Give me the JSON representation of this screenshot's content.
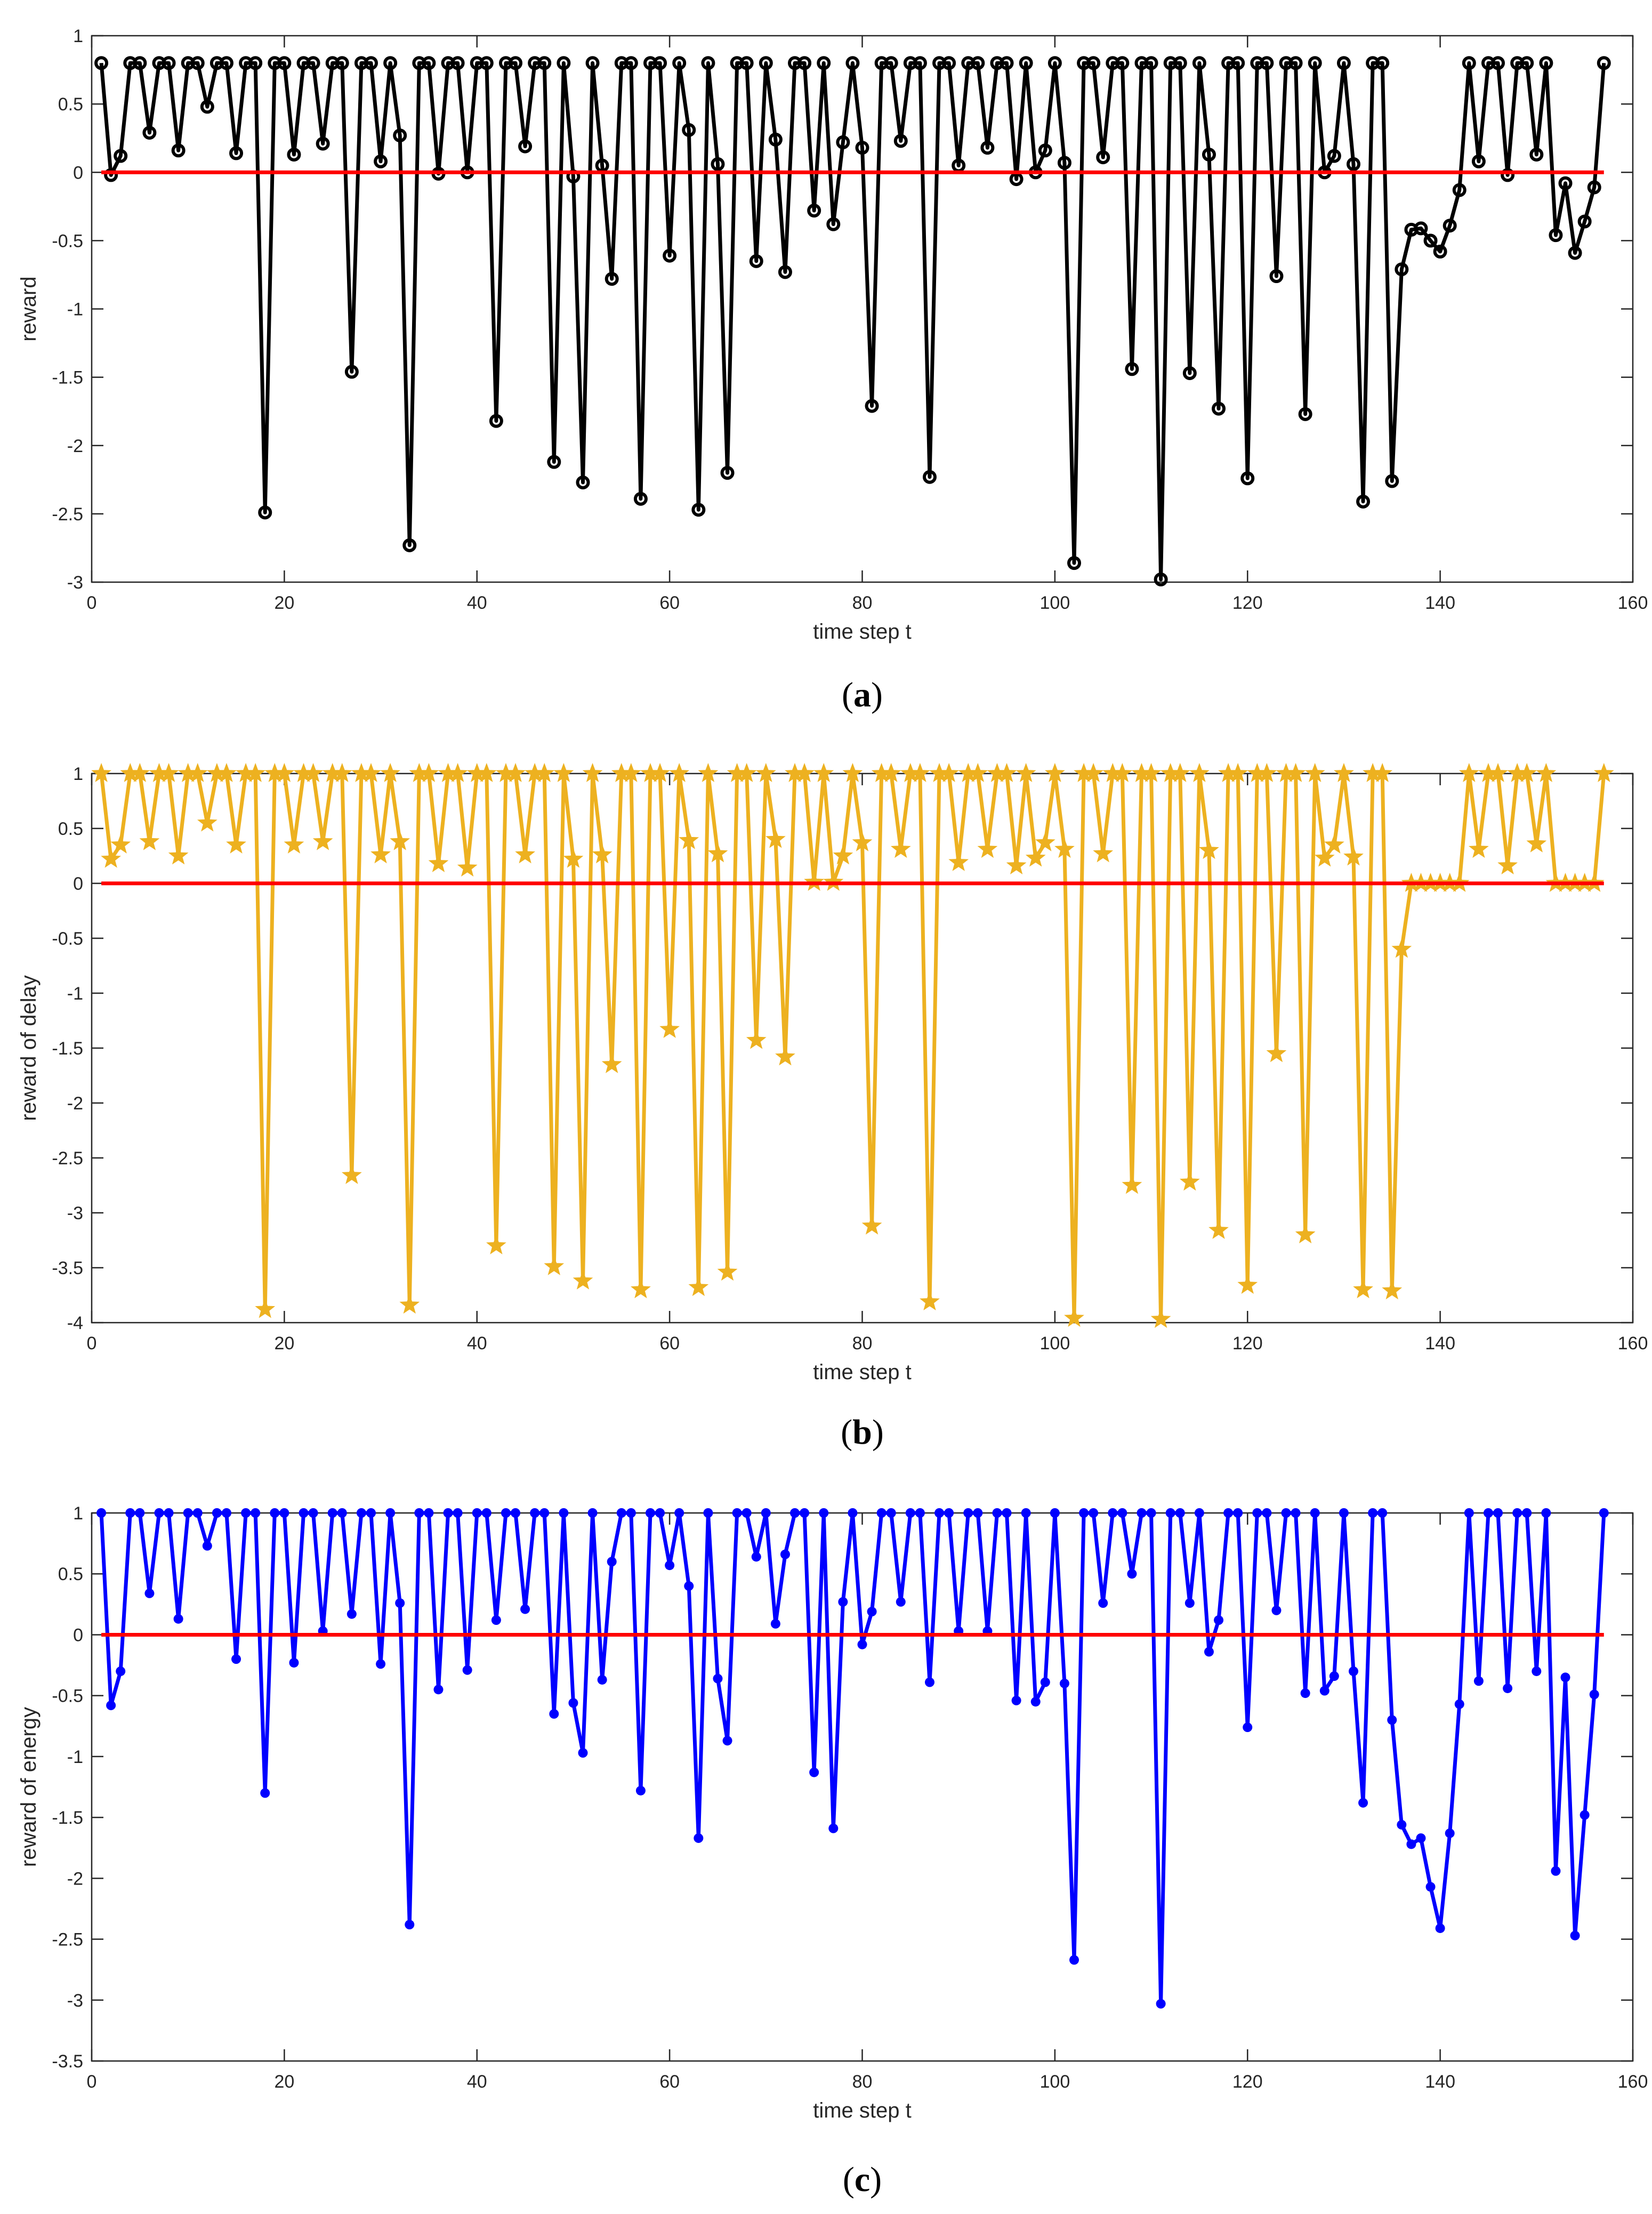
{
  "chart_data": [
    {
      "type": "line",
      "caption": "a",
      "xlabel": "time step t",
      "ylabel": "reward",
      "xlim": [
        0,
        160
      ],
      "ylim": [
        -3,
        1
      ],
      "xticks": [
        0,
        20,
        40,
        60,
        80,
        100,
        120,
        140,
        160
      ],
      "yticks": [
        -3,
        -2.5,
        -2,
        -1.5,
        -1,
        -0.5,
        0,
        0.5,
        1
      ],
      "xtick_labels": [
        "0",
        "20",
        "40",
        "60",
        "80",
        "100",
        "120",
        "140",
        "160"
      ],
      "ytick_labels": [
        "-3",
        "-2.5",
        "-2",
        "-1.5",
        "-1",
        "-0.5",
        "0",
        "0.5",
        "1"
      ],
      "reference_line": {
        "y": 0,
        "color": "#ff0000"
      },
      "series": [
        {
          "name": "reward",
          "color": "#000000",
          "marker": "circle",
          "x": [
            1,
            2,
            3,
            4,
            5,
            6,
            7,
            8,
            9,
            10,
            11,
            12,
            13,
            14,
            15,
            16,
            17,
            18,
            19,
            20,
            21,
            22,
            23,
            24,
            25,
            26,
            27,
            28,
            29,
            30,
            31,
            32,
            33,
            34,
            35,
            36,
            37,
            38,
            39,
            40,
            41,
            42,
            43,
            44,
            45,
            46,
            47,
            48,
            49,
            50,
            51,
            52,
            53,
            54,
            55,
            56,
            57,
            58,
            59,
            60,
            61,
            62,
            63,
            64,
            65,
            66,
            67,
            68,
            69,
            70,
            71,
            72,
            73,
            74,
            75,
            76,
            77,
            78,
            79,
            80,
            81,
            82,
            83,
            84,
            85,
            86,
            87,
            88,
            89,
            90,
            91,
            92,
            93,
            94,
            95,
            96,
            97,
            98,
            99,
            100,
            101,
            102,
            103,
            104,
            105,
            106,
            107,
            108,
            109,
            110,
            111,
            112,
            113,
            114,
            115,
            116,
            117,
            118,
            119,
            120,
            121,
            122,
            123,
            124,
            125,
            126,
            127,
            128,
            129,
            130,
            131,
            132,
            133,
            134,
            135,
            136,
            137,
            138,
            139,
            140,
            141,
            142,
            143,
            144,
            145,
            146,
            147,
            148,
            149,
            150,
            151,
            152,
            153,
            154,
            155,
            156,
            157
          ],
          "values": [
            0.8,
            -0.02,
            0.12,
            0.8,
            0.8,
            0.29,
            0.8,
            0.8,
            0.16,
            0.8,
            0.8,
            0.48,
            0.8,
            0.8,
            0.14,
            0.8,
            0.8,
            -2.49,
            0.8,
            0.8,
            0.13,
            0.8,
            0.8,
            0.21,
            0.8,
            0.8,
            -1.46,
            0.8,
            0.8,
            0.08,
            0.8,
            0.27,
            -2.73,
            0.8,
            0.8,
            -0.01,
            0.8,
            0.8,
            0.0,
            0.8,
            0.8,
            -1.82,
            0.8,
            0.8,
            0.19,
            0.8,
            0.8,
            -2.12,
            0.8,
            -0.03,
            -2.27,
            0.8,
            0.05,
            -0.78,
            0.8,
            0.8,
            -2.39,
            0.8,
            0.8,
            -0.61,
            0.8,
            0.31,
            -2.47,
            0.8,
            0.06,
            -2.2,
            0.8,
            0.8,
            -0.65,
            0.8,
            0.24,
            -0.73,
            0.8,
            0.8,
            -0.28,
            0.8,
            -0.38,
            0.22,
            0.8,
            0.18,
            -1.71,
            0.8,
            0.8,
            0.23,
            0.8,
            0.8,
            -2.23,
            0.8,
            0.8,
            0.05,
            0.8,
            0.8,
            0.18,
            0.8,
            0.8,
            -0.05,
            0.8,
            0.0,
            0.16,
            0.8,
            0.07,
            -2.86,
            0.8,
            0.8,
            0.11,
            0.8,
            0.8,
            -1.44,
            0.8,
            0.8,
            -2.98,
            0.8,
            0.8,
            -1.47,
            0.8,
            0.13,
            -1.73,
            0.8,
            0.8,
            -2.24,
            0.8,
            0.8,
            -0.76,
            0.8,
            0.8,
            -1.77,
            0.8,
            0.0,
            0.12,
            0.8,
            0.06,
            -2.41,
            0.8,
            0.8,
            -2.26,
            -0.71,
            -0.42,
            -0.41,
            -0.5,
            -0.58,
            -0.39,
            -0.13,
            0.8,
            0.08,
            0.8,
            0.8,
            -0.02,
            0.8,
            0.8,
            0.13,
            0.8,
            -0.46,
            -0.08,
            -0.59,
            -0.36,
            -0.11,
            0.8
          ]
        }
      ]
    },
    {
      "type": "line",
      "caption": "b",
      "xlabel": "time step t",
      "ylabel": "reward of delay",
      "xlim": [
        0,
        160
      ],
      "ylim": [
        -4,
        1
      ],
      "xticks": [
        0,
        20,
        40,
        60,
        80,
        100,
        120,
        140,
        160
      ],
      "yticks": [
        -4,
        -3.5,
        -3,
        -2.5,
        -2,
        -1.5,
        -1,
        -0.5,
        0,
        0.5,
        1
      ],
      "xtick_labels": [
        "0",
        "20",
        "40",
        "60",
        "80",
        "100",
        "120",
        "140",
        "160"
      ],
      "ytick_labels": [
        "-4",
        "-3.5",
        "-3",
        "-2.5",
        "-2",
        "-1.5",
        "-1",
        "-0.5",
        "0",
        "0.5",
        "1"
      ],
      "reference_line": {
        "y": 0,
        "color": "#ff0000"
      },
      "series": [
        {
          "name": "reward of delay",
          "color": "#edb120",
          "marker": "star",
          "x": [
            1,
            2,
            3,
            4,
            5,
            6,
            7,
            8,
            9,
            10,
            11,
            12,
            13,
            14,
            15,
            16,
            17,
            18,
            19,
            20,
            21,
            22,
            23,
            24,
            25,
            26,
            27,
            28,
            29,
            30,
            31,
            32,
            33,
            34,
            35,
            36,
            37,
            38,
            39,
            40,
            41,
            42,
            43,
            44,
            45,
            46,
            47,
            48,
            49,
            50,
            51,
            52,
            53,
            54,
            55,
            56,
            57,
            58,
            59,
            60,
            61,
            62,
            63,
            64,
            65,
            66,
            67,
            68,
            69,
            70,
            71,
            72,
            73,
            74,
            75,
            76,
            77,
            78,
            79,
            80,
            81,
            82,
            83,
            84,
            85,
            86,
            87,
            88,
            89,
            90,
            91,
            92,
            93,
            94,
            95,
            96,
            97,
            98,
            99,
            100,
            101,
            102,
            103,
            104,
            105,
            106,
            107,
            108,
            109,
            110,
            111,
            112,
            113,
            114,
            115,
            116,
            117,
            118,
            119,
            120,
            121,
            122,
            123,
            124,
            125,
            126,
            127,
            128,
            129,
            130,
            131,
            132,
            133,
            134,
            135,
            136,
            137,
            138,
            139,
            140,
            141,
            142,
            143,
            144,
            145,
            146,
            147,
            148,
            149,
            150,
            151,
            152,
            153,
            154,
            155,
            156,
            157
          ],
          "values": [
            1,
            0.22,
            0.35,
            1,
            1,
            0.38,
            1,
            1,
            0.25,
            1,
            1,
            0.55,
            1,
            1,
            0.35,
            1,
            1,
            -3.88,
            1,
            1,
            0.35,
            1,
            1,
            0.38,
            1,
            1,
            -2.66,
            1,
            1,
            0.26,
            1,
            0.38,
            -3.84,
            1,
            1,
            0.18,
            1,
            1,
            0.14,
            1,
            1,
            -3.3,
            1,
            1,
            0.26,
            1,
            1,
            -3.49,
            1,
            0.22,
            -3.62,
            1,
            0.26,
            -1.65,
            1,
            1,
            -3.7,
            1,
            1,
            -1.33,
            1,
            0.39,
            -3.68,
            1,
            0.27,
            -3.54,
            1,
            1,
            -1.43,
            1,
            0.4,
            -1.58,
            1,
            1,
            0.01,
            1,
            0.01,
            0.25,
            1,
            0.37,
            -3.12,
            1,
            1,
            0.31,
            1,
            1,
            -3.81,
            1,
            1,
            0.19,
            1,
            1,
            0.31,
            1,
            1,
            0.16,
            1,
            0.23,
            0.37,
            1,
            0.31,
            -3.96,
            1,
            1,
            0.27,
            1,
            1,
            -2.75,
            1,
            1,
            -3.97,
            1,
            1,
            -2.72,
            1,
            0.3,
            -3.16,
            1,
            1,
            -3.66,
            1,
            1,
            -1.55,
            1,
            1,
            -3.2,
            1,
            0.23,
            0.35,
            1,
            0.24,
            -3.7,
            1,
            1,
            -3.71,
            -0.6,
            0,
            0,
            0,
            0,
            0,
            0,
            1,
            0.31,
            1,
            1,
            0.16,
            1,
            1,
            0.36,
            1,
            0,
            0,
            0,
            0,
            0,
            1
          ]
        }
      ]
    },
    {
      "type": "line",
      "caption": "c",
      "xlabel": "time step t",
      "ylabel": "reward of energy",
      "xlim": [
        0,
        160
      ],
      "ylim": [
        -3.5,
        1
      ],
      "xticks": [
        0,
        20,
        40,
        60,
        80,
        100,
        120,
        140,
        160
      ],
      "yticks": [
        -3.5,
        -3,
        -2.5,
        -2,
        -1.5,
        -1,
        -0.5,
        0,
        0.5,
        1
      ],
      "xtick_labels": [
        "0",
        "20",
        "40",
        "60",
        "80",
        "100",
        "120",
        "140",
        "160"
      ],
      "ytick_labels": [
        "-3.5",
        "-3",
        "-2.5",
        "-2",
        "-1.5",
        "-1",
        "-0.5",
        "0",
        "0.5",
        "1"
      ],
      "reference_line": {
        "y": 0,
        "color": "#ff0000"
      },
      "series": [
        {
          "name": "reward of energy",
          "color": "#0000ff",
          "marker": "dot",
          "x": [
            1,
            2,
            3,
            4,
            5,
            6,
            7,
            8,
            9,
            10,
            11,
            12,
            13,
            14,
            15,
            16,
            17,
            18,
            19,
            20,
            21,
            22,
            23,
            24,
            25,
            26,
            27,
            28,
            29,
            30,
            31,
            32,
            33,
            34,
            35,
            36,
            37,
            38,
            39,
            40,
            41,
            42,
            43,
            44,
            45,
            46,
            47,
            48,
            49,
            50,
            51,
            52,
            53,
            54,
            55,
            56,
            57,
            58,
            59,
            60,
            61,
            62,
            63,
            64,
            65,
            66,
            67,
            68,
            69,
            70,
            71,
            72,
            73,
            74,
            75,
            76,
            77,
            78,
            79,
            80,
            81,
            82,
            83,
            84,
            85,
            86,
            87,
            88,
            89,
            90,
            91,
            92,
            93,
            94,
            95,
            96,
            97,
            98,
            99,
            100,
            101,
            102,
            103,
            104,
            105,
            106,
            107,
            108,
            109,
            110,
            111,
            112,
            113,
            114,
            115,
            116,
            117,
            118,
            119,
            120,
            121,
            122,
            123,
            124,
            125,
            126,
            127,
            128,
            129,
            130,
            131,
            132,
            133,
            134,
            135,
            136,
            137,
            138,
            139,
            140,
            141,
            142,
            143,
            144,
            145,
            146,
            147,
            148,
            149,
            150,
            151,
            152,
            153,
            154,
            155,
            156,
            157
          ],
          "values": [
            1,
            -0.58,
            -0.3,
            1,
            1,
            0.34,
            1,
            1,
            0.13,
            1,
            1,
            0.73,
            1,
            1,
            -0.2,
            1,
            1,
            -1.3,
            1,
            1,
            -0.23,
            1,
            1,
            0.03,
            1,
            1,
            0.17,
            1,
            1,
            -0.24,
            1,
            0.26,
            -2.38,
            1,
            1,
            -0.45,
            1,
            1,
            -0.29,
            1,
            1,
            0.12,
            1,
            1,
            0.21,
            1,
            1,
            -0.65,
            1,
            -0.56,
            -0.97,
            1,
            -0.37,
            0.6,
            1,
            1,
            -1.28,
            1,
            1,
            0.57,
            1,
            0.4,
            -1.67,
            1,
            -0.36,
            -0.87,
            1,
            1,
            0.64,
            1,
            0.09,
            0.66,
            1,
            1,
            -1.13,
            1,
            -1.59,
            0.27,
            1,
            -0.08,
            0.19,
            1,
            1,
            0.27,
            1,
            1,
            -0.39,
            1,
            1,
            0.03,
            1,
            1,
            0.03,
            1,
            1,
            -0.54,
            1,
            -0.55,
            -0.39,
            1,
            -0.4,
            -2.67,
            1,
            1,
            0.26,
            1,
            1,
            0.5,
            1,
            1,
            -3.03,
            1,
            1,
            0.26,
            1,
            -0.14,
            0.12,
            1,
            1,
            -0.76,
            1,
            1,
            0.2,
            1,
            1,
            -0.48,
            1,
            -0.46,
            -0.34,
            1,
            -0.3,
            -1.38,
            1,
            1,
            -0.7,
            -1.56,
            -1.72,
            -1.67,
            -2.07,
            -2.41,
            -1.63,
            -0.57,
            1,
            -0.38,
            1,
            1,
            -0.44,
            1,
            1,
            -0.3,
            1,
            -1.94,
            -0.35,
            -2.47,
            -1.48,
            -0.49,
            1
          ]
        }
      ]
    }
  ]
}
